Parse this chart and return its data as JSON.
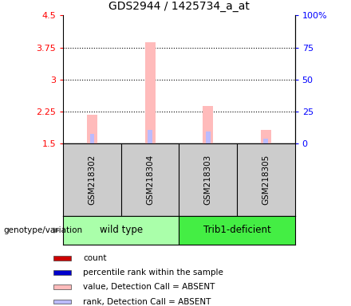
{
  "title": "GDS2944 / 1425734_a_at",
  "samples": [
    "GSM218302",
    "GSM218304",
    "GSM218303",
    "GSM218305"
  ],
  "groups": [
    "wild type",
    "wild type",
    "Trib1-deficient",
    "Trib1-deficient"
  ],
  "group_labels": [
    "wild type",
    "Trib1-deficient"
  ],
  "group_colors_light": "#aaffaa",
  "group_colors_dark": "#44ee44",
  "bar_bottom": 1.5,
  "ylim_left": [
    1.5,
    4.5
  ],
  "ylim_right": [
    0,
    100
  ],
  "yticks_left": [
    1.5,
    2.25,
    3.0,
    3.75,
    4.5
  ],
  "ytick_labels_left": [
    "1.5",
    "2.25",
    "3",
    "3.75",
    "4.5"
  ],
  "yticks_right": [
    0,
    25,
    50,
    75,
    100
  ],
  "ytick_labels_right": [
    "0",
    "25",
    "50",
    "75",
    "100%"
  ],
  "pink_bar_tops": [
    2.18,
    3.88,
    2.38,
    1.83
  ],
  "blue_bar_tops": [
    1.73,
    1.83,
    1.78,
    1.62
  ],
  "pink_bar_width": 0.18,
  "blue_bar_width": 0.08,
  "pink_color": "#ffbbbb",
  "blue_color": "#bbbbff",
  "bg_plot": "#ffffff",
  "bg_label": "#cccccc",
  "legend_items": [
    {
      "color": "#cc0000",
      "label": "count"
    },
    {
      "color": "#0000cc",
      "label": "percentile rank within the sample"
    },
    {
      "color": "#ffbbbb",
      "label": "value, Detection Call = ABSENT"
    },
    {
      "color": "#bbbbff",
      "label": "rank, Detection Call = ABSENT"
    }
  ],
  "genotype_label": "genotype/variation"
}
